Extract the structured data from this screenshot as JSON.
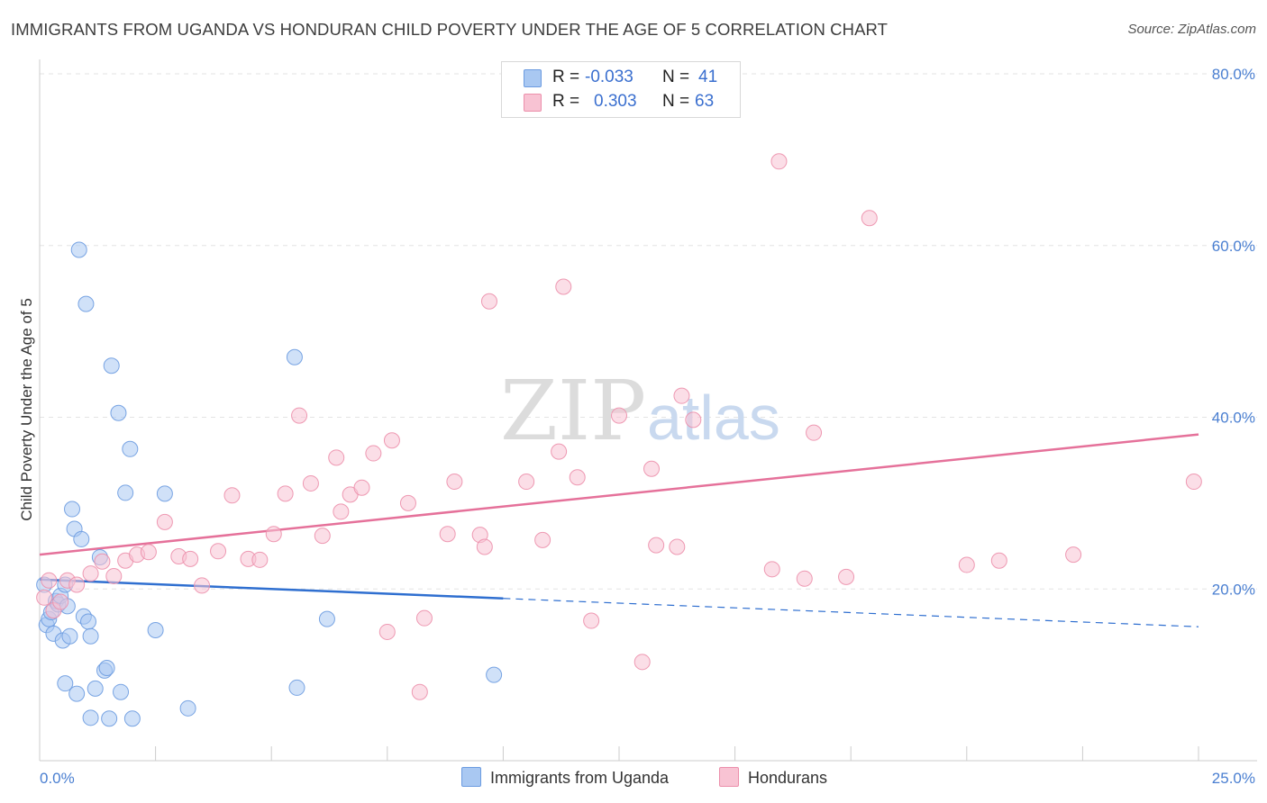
{
  "header": {
    "title": "IMMIGRANTS FROM UGANDA VS HONDURAN CHILD POVERTY UNDER THE AGE OF 5 CORRELATION CHART",
    "source": "Source: ZipAtlas.com"
  },
  "watermark": {
    "zip": "ZIP",
    "atlas": "atlas"
  },
  "legend": {
    "rows": [
      {
        "r_label": "R =",
        "r_value": "-0.033",
        "n_label": "N =",
        "n_value": "41",
        "color": "#a9c8f2",
        "border": "#6b9be0"
      },
      {
        "r_label": "R =",
        "r_value": "0.303",
        "n_label": "N =",
        "n_value": "63",
        "color": "#f8c3d3",
        "border": "#ec8fab"
      }
    ]
  },
  "bottom_legend": [
    {
      "label": "Immigrants from Uganda",
      "color": "#a9c8f2",
      "border": "#6b9be0"
    },
    {
      "label": "Hondurans",
      "color": "#f8c3d3",
      "border": "#ec8fab"
    }
  ],
  "chart_data": {
    "type": "scatter",
    "title": "IMMIGRANTS FROM UGANDA VS HONDURAN CHILD POVERTY UNDER THE AGE OF 5 CORRELATION CHART",
    "xlabel": "",
    "ylabel": "Child Poverty Under the Age of 5",
    "xlim": [
      0,
      25
    ],
    "ylim": [
      0,
      80
    ],
    "x_ticks": [
      "0.0%",
      "25.0%"
    ],
    "y_ticks": [
      "20.0%",
      "40.0%",
      "60.0%",
      "80.0%"
    ],
    "y_tick_values": [
      20,
      40,
      60,
      80
    ],
    "grid": true,
    "legend_position": "top-center",
    "series": [
      {
        "name": "Immigrants from Uganda",
        "color": "#a9c8f2",
        "stroke": "#6b9be0",
        "line_color": "#2f6fd0",
        "trend": {
          "x0": 0,
          "y0": 21.1,
          "x1": 10,
          "y1": 18.9,
          "x_dash_end": 25,
          "y_dash_end": 15.6
        },
        "points": [
          [
            0.1,
            20.5
          ],
          [
            0.15,
            15.8
          ],
          [
            0.2,
            16.5
          ],
          [
            0.25,
            17.3
          ],
          [
            0.3,
            14.8
          ],
          [
            0.35,
            18.6
          ],
          [
            0.4,
            18.2
          ],
          [
            0.45,
            19.2
          ],
          [
            0.5,
            14.0
          ],
          [
            0.55,
            20.5
          ],
          [
            0.6,
            18.0
          ],
          [
            0.65,
            14.5
          ],
          [
            0.7,
            29.3
          ],
          [
            0.75,
            27.0
          ],
          [
            0.8,
            7.8
          ],
          [
            0.85,
            59.5
          ],
          [
            0.9,
            25.8
          ],
          [
            0.95,
            16.8
          ],
          [
            1.0,
            53.2
          ],
          [
            1.05,
            16.2
          ],
          [
            1.1,
            14.5
          ],
          [
            1.2,
            8.4
          ],
          [
            1.3,
            23.7
          ],
          [
            1.4,
            10.5
          ],
          [
            1.45,
            10.8
          ],
          [
            1.5,
            4.9
          ],
          [
            1.55,
            46.0
          ],
          [
            1.7,
            40.5
          ],
          [
            1.75,
            8.0
          ],
          [
            1.85,
            31.2
          ],
          [
            1.95,
            36.3
          ],
          [
            2.0,
            4.9
          ],
          [
            2.5,
            15.2
          ],
          [
            2.7,
            31.1
          ],
          [
            3.2,
            6.1
          ],
          [
            0.55,
            9.0
          ],
          [
            1.1,
            5.0
          ],
          [
            5.5,
            47.0
          ],
          [
            5.55,
            8.5
          ],
          [
            6.2,
            16.5
          ],
          [
            9.8,
            10.0
          ]
        ]
      },
      {
        "name": "Hondurans",
        "color": "#f8c3d3",
        "stroke": "#ec8fab",
        "line_color": "#e5719a",
        "trend": {
          "x0": 0,
          "y0": 24.0,
          "x1": 25,
          "y1": 38.0
        },
        "points": [
          [
            0.1,
            19.0
          ],
          [
            0.3,
            17.5
          ],
          [
            0.45,
            18.5
          ],
          [
            0.6,
            21.0
          ],
          [
            0.8,
            20.5
          ],
          [
            1.1,
            21.8
          ],
          [
            1.35,
            23.2
          ],
          [
            1.6,
            21.5
          ],
          [
            1.85,
            23.3
          ],
          [
            2.1,
            24.0
          ],
          [
            2.35,
            24.3
          ],
          [
            2.7,
            27.8
          ],
          [
            3.0,
            23.8
          ],
          [
            3.25,
            23.5
          ],
          [
            3.5,
            20.4
          ],
          [
            3.85,
            24.4
          ],
          [
            4.15,
            30.9
          ],
          [
            4.5,
            23.5
          ],
          [
            4.75,
            23.4
          ],
          [
            5.05,
            26.4
          ],
          [
            5.3,
            31.1
          ],
          [
            5.6,
            40.2
          ],
          [
            5.85,
            32.3
          ],
          [
            6.1,
            26.2
          ],
          [
            6.4,
            35.3
          ],
          [
            6.5,
            29.0
          ],
          [
            6.7,
            31.0
          ],
          [
            6.95,
            31.8
          ],
          [
            7.2,
            35.8
          ],
          [
            7.5,
            15.0
          ],
          [
            7.6,
            37.3
          ],
          [
            7.95,
            30.0
          ],
          [
            8.2,
            8.0
          ],
          [
            8.3,
            16.6
          ],
          [
            8.8,
            26.4
          ],
          [
            8.95,
            32.5
          ],
          [
            9.5,
            26.3
          ],
          [
            9.6,
            24.9
          ],
          [
            9.7,
            53.5
          ],
          [
            10.5,
            32.5
          ],
          [
            10.85,
            25.7
          ],
          [
            11.2,
            36.0
          ],
          [
            11.3,
            55.2
          ],
          [
            11.6,
            33.0
          ],
          [
            11.9,
            16.3
          ],
          [
            12.5,
            40.2
          ],
          [
            13.0,
            11.5
          ],
          [
            13.2,
            34.0
          ],
          [
            13.3,
            25.1
          ],
          [
            13.75,
            24.9
          ],
          [
            13.85,
            42.5
          ],
          [
            14.1,
            39.7
          ],
          [
            15.8,
            22.3
          ],
          [
            15.95,
            69.8
          ],
          [
            16.5,
            21.2
          ],
          [
            16.7,
            38.2
          ],
          [
            17.4,
            21.4
          ],
          [
            17.9,
            63.2
          ],
          [
            20.0,
            22.8
          ],
          [
            20.7,
            23.3
          ],
          [
            22.3,
            24.0
          ],
          [
            24.9,
            32.5
          ],
          [
            0.2,
            21.0
          ]
        ]
      }
    ]
  }
}
